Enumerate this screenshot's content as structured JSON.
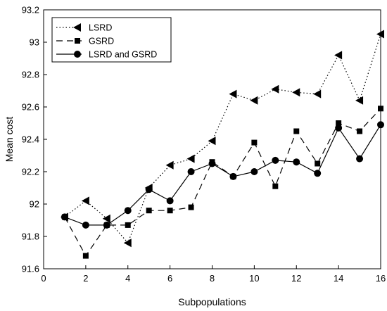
{
  "chart_data": {
    "type": "line",
    "title": "",
    "xlabel": "Subpopulations",
    "ylabel": "Mean cost",
    "xlim": [
      0,
      16
    ],
    "ylim": [
      91.6,
      93.2
    ],
    "xticks": [
      0,
      2,
      4,
      6,
      8,
      10,
      12,
      14,
      16
    ],
    "xtick_labels": [
      "0",
      "2",
      "4",
      "6",
      "8",
      "10",
      "12",
      "14",
      "16"
    ],
    "yticks": [
      91.6,
      91.8,
      92.0,
      92.2,
      92.4,
      92.6,
      92.8,
      93.0,
      93.2
    ],
    "ytick_labels": [
      "91.6",
      "91.8",
      "92",
      "92.2",
      "92.4",
      "92.6",
      "92.8",
      "93",
      "93.2"
    ],
    "grid": false,
    "legend_position": "top-left",
    "x": [
      1,
      2,
      3,
      4,
      5,
      6,
      7,
      8,
      9,
      10,
      11,
      12,
      13,
      14,
      15,
      16
    ],
    "series": [
      {
        "name": "LSRD",
        "line_style": "dotted",
        "marker": "left-triangle",
        "color": "#000000",
        "values": [
          91.92,
          92.02,
          91.91,
          91.76,
          92.1,
          92.24,
          92.28,
          92.39,
          92.68,
          92.64,
          92.71,
          92.69,
          92.68,
          92.92,
          92.64,
          93.05
        ]
      },
      {
        "name": "GSRD",
        "line_style": "dashed",
        "marker": "square",
        "color": "#000000",
        "values": [
          91.92,
          91.68,
          91.87,
          91.87,
          91.96,
          91.96,
          91.98,
          92.26,
          92.17,
          92.38,
          92.11,
          92.45,
          92.25,
          92.5,
          92.45,
          92.59
        ]
      },
      {
        "name": "LSRD and GSRD",
        "line_style": "solid",
        "marker": "circle",
        "color": "#000000",
        "values": [
          91.92,
          91.87,
          91.87,
          91.96,
          92.09,
          92.02,
          92.2,
          92.25,
          92.17,
          92.2,
          92.27,
          92.26,
          92.19,
          92.47,
          92.28,
          92.49
        ]
      }
    ]
  }
}
